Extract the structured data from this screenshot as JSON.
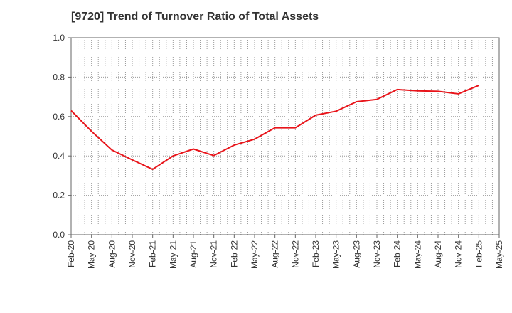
{
  "chart_data": {
    "type": "line",
    "title": "[9720]  Trend of Turnover Ratio of Total Assets",
    "xlabel": "",
    "ylabel": "",
    "ylim": [
      0.0,
      1.0
    ],
    "y_ticks": [
      "0.0",
      "0.2",
      "0.4",
      "0.6",
      "0.8",
      "1.0"
    ],
    "x_ticks": [
      "Feb-20",
      "May-20",
      "Aug-20",
      "Nov-20",
      "Feb-21",
      "May-21",
      "Aug-21",
      "Nov-21",
      "Feb-22",
      "May-22",
      "Aug-22",
      "Nov-22",
      "Feb-23",
      "May-23",
      "Aug-23",
      "Nov-23",
      "Feb-24",
      "May-24",
      "Aug-24",
      "Nov-24",
      "Feb-25",
      "May-25"
    ],
    "grid": true,
    "series": [
      {
        "color": "#e8141a",
        "x": [
          "Feb-20",
          "May-20",
          "Aug-20",
          "Nov-20",
          "Feb-21",
          "May-21",
          "Aug-21",
          "Nov-21",
          "Feb-22",
          "May-22",
          "Aug-22",
          "Nov-22",
          "Feb-23",
          "May-23",
          "Aug-23",
          "Nov-23",
          "Feb-24",
          "May-24",
          "Aug-24",
          "Nov-24",
          "Feb-25"
        ],
        "values": [
          0.63,
          0.525,
          0.43,
          0.38,
          0.332,
          0.4,
          0.435,
          0.402,
          0.455,
          0.485,
          0.543,
          0.543,
          0.607,
          0.627,
          0.675,
          0.687,
          0.737,
          0.73,
          0.728,
          0.715,
          0.758
        ]
      }
    ]
  }
}
